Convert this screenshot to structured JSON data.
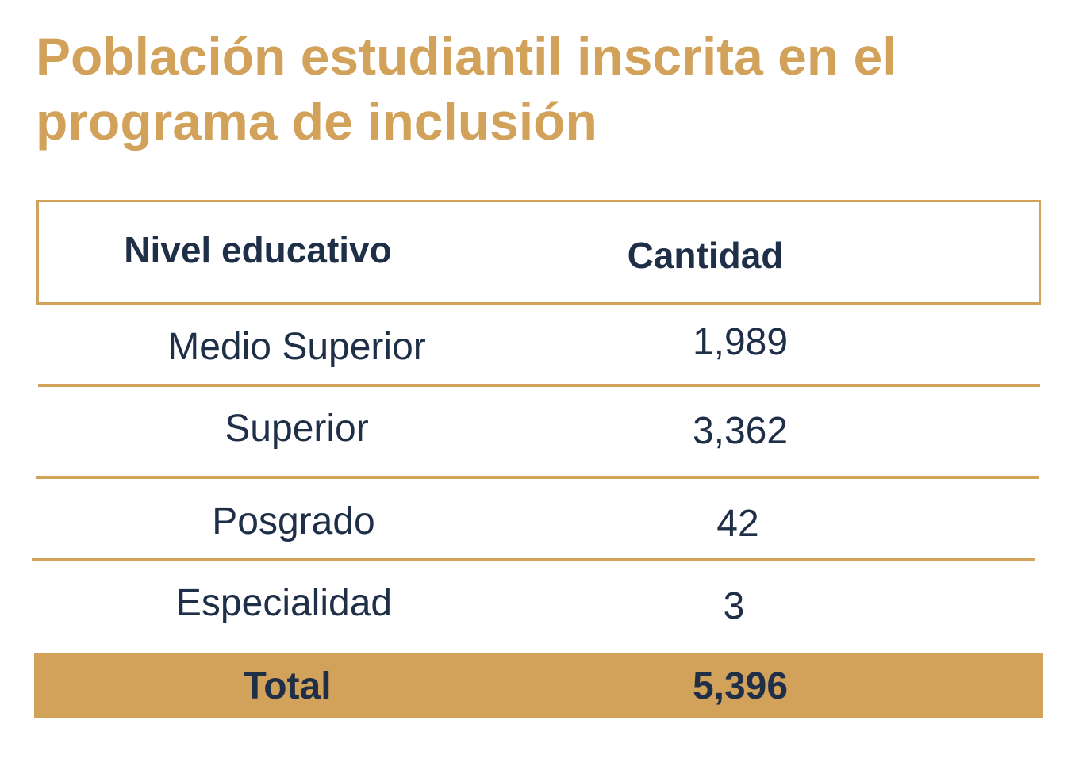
{
  "title": "Población estudiantil inscrita en el programa de inclusión",
  "table": {
    "headers": [
      "Nivel educativo",
      "Cantidad"
    ],
    "rows": [
      {
        "nivel": "Medio Superior",
        "cantidad": "1,989"
      },
      {
        "nivel": "Superior",
        "cantidad": "3,362"
      },
      {
        "nivel": "Posgrado",
        "cantidad": "42"
      },
      {
        "nivel": "Especialidad",
        "cantidad": "3"
      }
    ],
    "total": {
      "label": "Total",
      "value": "5,396"
    }
  },
  "colors": {
    "accent": "#D2A15A",
    "text": "#1F2F48"
  }
}
